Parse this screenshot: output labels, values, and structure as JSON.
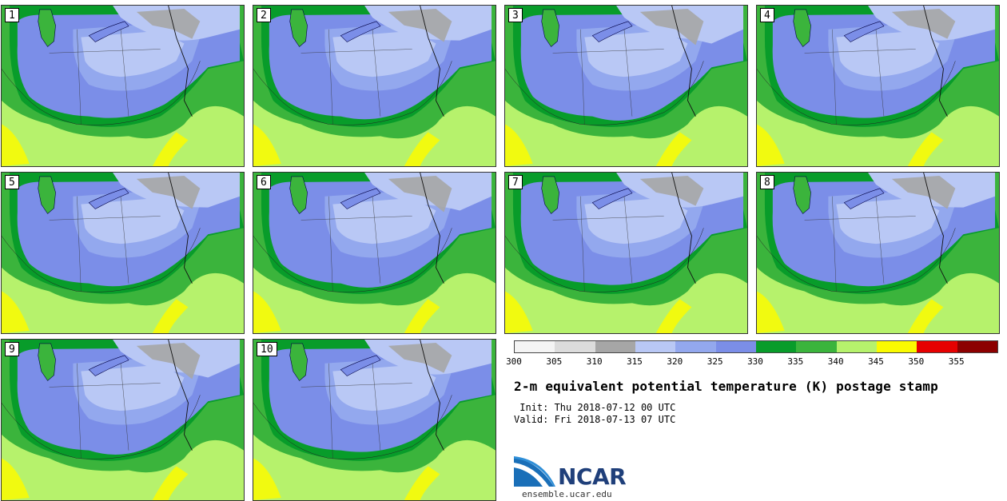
{
  "panels": [
    {
      "label": "1"
    },
    {
      "label": "2"
    },
    {
      "label": "3"
    },
    {
      "label": "4"
    },
    {
      "label": "5"
    },
    {
      "label": "6"
    },
    {
      "label": "7"
    },
    {
      "label": "8"
    },
    {
      "label": "9"
    },
    {
      "label": "10"
    }
  ],
  "colorbar": {
    "colors": [
      "#f4f4f4",
      "#dcdcdc",
      "#a6a6a6",
      "#b9c8f5",
      "#93a8ee",
      "#7b8ee8",
      "#089c2a",
      "#3bb43c",
      "#b6f26c",
      "#fbfb00",
      "#e60000",
      "#8c0000"
    ],
    "ticks": [
      "300",
      "305",
      "310",
      "315",
      "320",
      "325",
      "330",
      "335",
      "340",
      "345",
      "350",
      "355"
    ]
  },
  "title": "2-m equivalent potential temperature (K) postage stamp",
  "init": " Init: Thu 2018-07-12 00 UTC",
  "valid": "Valid: Fri 2018-07-13 07 UTC",
  "logo": {
    "text": "NCAR",
    "url": "ensemble.ucar.edu"
  }
}
